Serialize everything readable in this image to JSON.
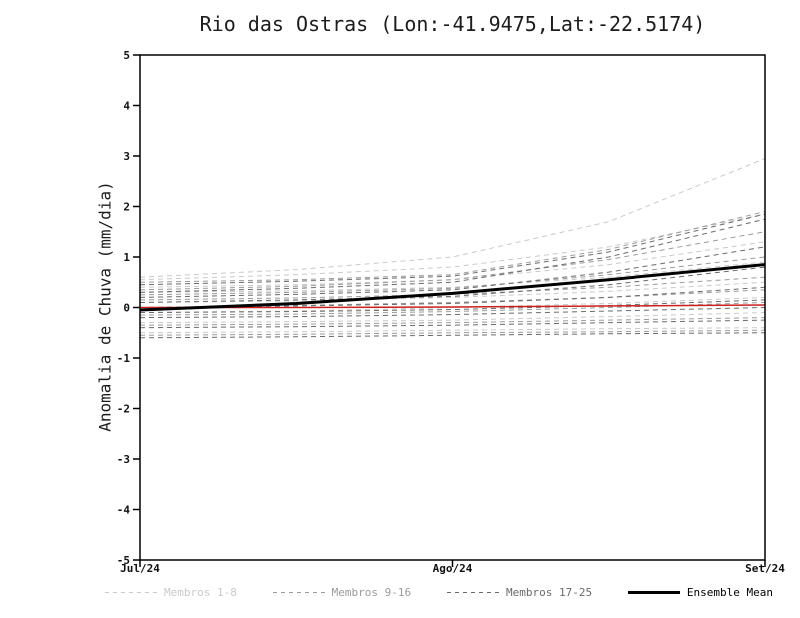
{
  "chart_data": {
    "type": "line",
    "title": "Rio das Ostras (Lon:-41.9475,Lat:-22.5174)",
    "ylabel": "Anomalia de Chuva (mm/dia)",
    "xlabel": "",
    "ylim": [
      -5,
      5
    ],
    "y_ticks": [
      5,
      4,
      3,
      2,
      1,
      0,
      -1,
      -2,
      -3,
      -4,
      -5
    ],
    "x_tick_labels": [
      "Jul/24",
      "Ago/24",
      "Set/24"
    ],
    "x": [
      0,
      0.25,
      0.5,
      0.75,
      1
    ],
    "grid": false,
    "legend_position": "bottom",
    "background": "#ffffff",
    "frame_color": "#000000",
    "groups": [
      {
        "name": "Membros 1-8",
        "color": "#c9c9c9",
        "dash": "5 4",
        "width": 1
      },
      {
        "name": "Membros 9-16",
        "color": "#9b9b9b",
        "dash": "5 4",
        "width": 1
      },
      {
        "name": "Membros 17-25",
        "color": "#6a6a6a",
        "dash": "5 4",
        "width": 1
      }
    ],
    "members": [
      {
        "group": 0,
        "values": [
          0.6,
          0.75,
          1.0,
          1.7,
          2.95
        ]
      },
      {
        "group": 0,
        "values": [
          0.55,
          0.65,
          0.8,
          1.2,
          1.85
        ]
      },
      {
        "group": 0,
        "values": [
          0.4,
          0.45,
          0.55,
          0.85,
          1.3
        ]
      },
      {
        "group": 0,
        "values": [
          0.3,
          0.33,
          0.4,
          0.6,
          0.9
        ]
      },
      {
        "group": 0,
        "values": [
          0.1,
          0.13,
          0.2,
          0.32,
          0.5
        ]
      },
      {
        "group": 0,
        "values": [
          -0.1,
          -0.07,
          0.0,
          0.08,
          0.2
        ]
      },
      {
        "group": 0,
        "values": [
          -0.3,
          -0.28,
          -0.25,
          -0.18,
          -0.1
        ]
      },
      {
        "group": 0,
        "values": [
          -0.5,
          -0.48,
          -0.45,
          -0.42,
          -0.4
        ]
      },
      {
        "group": 1,
        "values": [
          0.5,
          0.55,
          0.65,
          1.15,
          1.9
        ]
      },
      {
        "group": 1,
        "values": [
          0.35,
          0.42,
          0.55,
          0.95,
          1.5
        ]
      },
      {
        "group": 1,
        "values": [
          0.25,
          0.3,
          0.38,
          0.65,
          1.0
        ]
      },
      {
        "group": 1,
        "values": [
          0.15,
          0.19,
          0.26,
          0.4,
          0.6
        ]
      },
      {
        "group": 1,
        "values": [
          0.0,
          0.04,
          0.1,
          0.2,
          0.35
        ]
      },
      {
        "group": 1,
        "values": [
          -0.15,
          -0.13,
          -0.08,
          0.0,
          0.1
        ]
      },
      {
        "group": 1,
        "values": [
          -0.35,
          -0.33,
          -0.3,
          -0.25,
          -0.2
        ]
      },
      {
        "group": 1,
        "values": [
          -0.55,
          -0.53,
          -0.5,
          -0.48,
          -0.45
        ]
      },
      {
        "group": 2,
        "values": [
          0.45,
          0.52,
          0.62,
          1.1,
          1.85
        ]
      },
      {
        "group": 2,
        "values": [
          0.3,
          0.38,
          0.5,
          1.0,
          1.75
        ]
      },
      {
        "group": 2,
        "values": [
          0.2,
          0.26,
          0.35,
          0.7,
          1.2
        ]
      },
      {
        "group": 2,
        "values": [
          0.1,
          0.15,
          0.22,
          0.45,
          0.8
        ]
      },
      {
        "group": 2,
        "values": [
          0.0,
          0.03,
          0.08,
          0.2,
          0.4
        ]
      },
      {
        "group": 2,
        "values": [
          -0.1,
          -0.08,
          -0.04,
          0.04,
          0.15
        ]
      },
      {
        "group": 2,
        "values": [
          -0.2,
          -0.18,
          -0.14,
          -0.07,
          0.0
        ]
      },
      {
        "group": 2,
        "values": [
          -0.4,
          -0.38,
          -0.35,
          -0.3,
          -0.25
        ]
      },
      {
        "group": 2,
        "values": [
          -0.6,
          -0.58,
          -0.55,
          -0.52,
          -0.5
        ]
      }
    ],
    "reference": {
      "color": "#cc2020",
      "width": 1.5,
      "values": [
        0.0,
        0.0,
        0.01,
        0.03,
        0.05
      ]
    },
    "mean": {
      "name": "Ensemble Mean",
      "color": "#000000",
      "width": 3,
      "values": [
        -0.05,
        0.08,
        0.28,
        0.55,
        0.85
      ]
    }
  }
}
